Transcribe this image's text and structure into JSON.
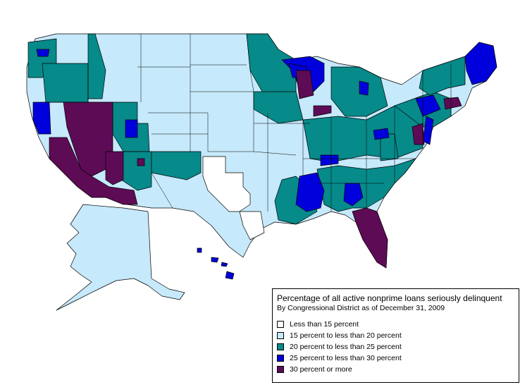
{
  "legend": {
    "title": "Percentage of all active nonprime loans seriously delinquent",
    "subtitle": "By Congressional District as of December 31, 2009",
    "items": [
      {
        "label": "Less than 15 percent",
        "color": "#ffffff"
      },
      {
        "label": "15 percent to less than 20 percent",
        "color": "#c6e9fb"
      },
      {
        "label": "20 percent to less than 25 percent",
        "color": "#078a8a"
      },
      {
        "label": "25 percent to less than 30 percent",
        "color": "#0000dc"
      },
      {
        "label": "30 percent or more",
        "color": "#5e0b56"
      }
    ]
  }
}
